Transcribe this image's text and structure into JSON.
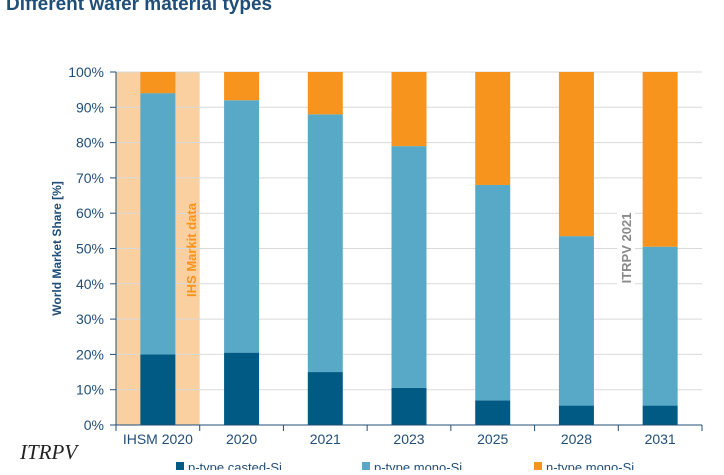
{
  "title": "Different wafer material types",
  "brand": "ITRPV",
  "chart_data": {
    "type": "bar",
    "stacked": true,
    "ylabel": "World Market Share [%]",
    "ylim": [
      0,
      100
    ],
    "yticks": [
      "0%",
      "10%",
      "20%",
      "30%",
      "40%",
      "50%",
      "60%",
      "70%",
      "80%",
      "90%",
      "100%"
    ],
    "grid": true,
    "categories": [
      "IHSM 2020",
      "2020",
      "2021",
      "2023",
      "2025",
      "2028",
      "2031"
    ],
    "series": [
      {
        "name": "p-type casted-Si",
        "color": "#005a84",
        "values": [
          20,
          20.5,
          15,
          10.5,
          7,
          5.5,
          5.5
        ]
      },
      {
        "name": "p-type mono-Si",
        "color": "#58a9c8",
        "values": [
          74,
          71.5,
          73,
          68.5,
          61,
          48,
          45
        ]
      },
      {
        "name": "n-type mono-Si",
        "color": "#f7941d",
        "values": [
          6,
          8,
          12,
          21,
          32,
          46.5,
          49.5
        ]
      }
    ],
    "annotations": [
      {
        "text": "IHS Markit data",
        "color": "#f7941d"
      },
      {
        "text": "ITRPV 2021",
        "color": "#8a8a8a"
      }
    ],
    "highlight_color": "#fbd0a0",
    "legend_position": "bottom"
  }
}
